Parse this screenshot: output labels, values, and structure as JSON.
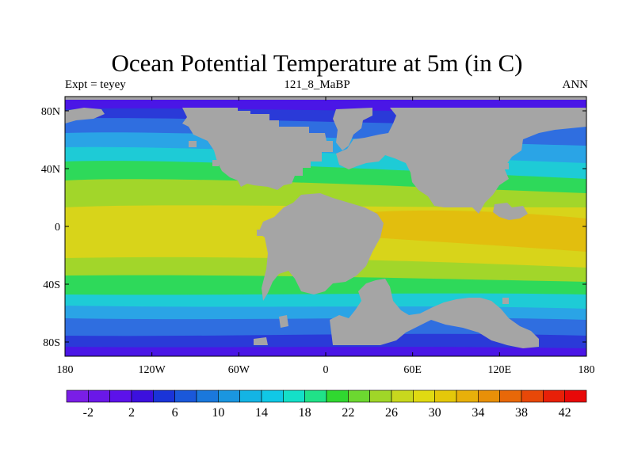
{
  "title": "Ocean Potential Temperature at 5m (in C)",
  "left_string": "Expt = teyey",
  "center_string": "121_8_MaBP",
  "right_string": "ANN",
  "lon_ticks": [
    "180",
    "120W",
    "60W",
    "0",
    "60E",
    "120E",
    "180"
  ],
  "lat_ticks": [
    "80N",
    "40N",
    "0",
    "40S",
    "80S"
  ],
  "colorbar": {
    "labels": [
      "-2",
      "2",
      "6",
      "10",
      "14",
      "18",
      "22",
      "26",
      "30",
      "34",
      "38",
      "42"
    ],
    "colors": [
      "#7a1ee6",
      "#6a18e8",
      "#5c12ea",
      "#3c10de",
      "#1a34d8",
      "#1a58da",
      "#1a78dc",
      "#1a96e0",
      "#14b4e4",
      "#10c8e6",
      "#14e0c8",
      "#20e288",
      "#30d830",
      "#6cd830",
      "#a0d628",
      "#c8d81e",
      "#e0da12",
      "#e4c80a",
      "#e8b00a",
      "#e89008",
      "#e86808",
      "#e84808",
      "#e82008",
      "#e80808"
    ]
  },
  "colors": {
    "land": "#a5a5a5",
    "polar": "#4a16e6",
    "subpolar": "#2a3ad8",
    "cold": "#2f6ee0",
    "cool": "#2aa4e6",
    "mild": "#1ecbd6",
    "temperate": "#2ed95a",
    "warm": "#a2d62a",
    "hot": "#d8d41a",
    "hottest": "#e2be0e"
  },
  "map_note": "Ocean surface field; continents rendered in gray."
}
